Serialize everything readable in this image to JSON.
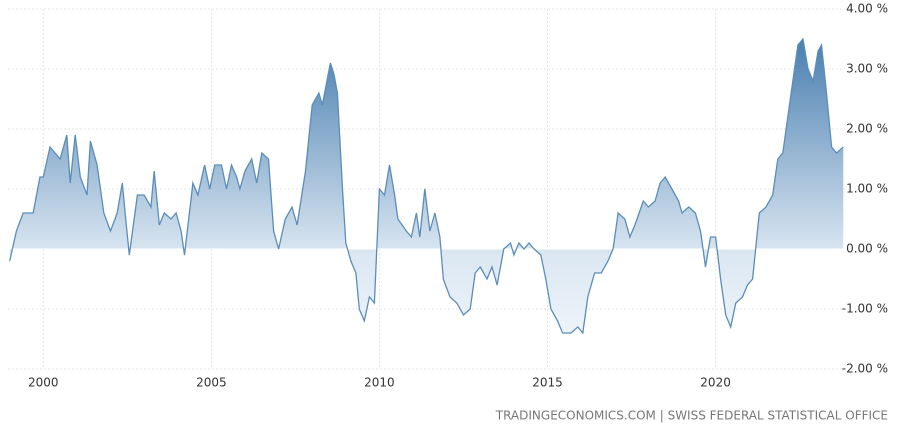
{
  "chart_data": {
    "type": "area",
    "source": "TRADINGECONOMICS.COM | SWISS FEDERAL STATISTICAL OFFICE",
    "xlim": [
      1998.95,
      2023.85
    ],
    "xticks": [
      2000,
      2005,
      2010,
      2015,
      2020
    ],
    "ylim": [
      -2,
      4
    ],
    "yticks": [
      {
        "value": -2,
        "label": "-2.00 %"
      },
      {
        "value": -1,
        "label": "-1.00 %"
      },
      {
        "value": 0,
        "label": "0.00 %"
      },
      {
        "value": 1,
        "label": "1.00 %"
      },
      {
        "value": 2,
        "label": "2.00 %"
      },
      {
        "value": 3,
        "label": "3.00 %"
      },
      {
        "value": 4,
        "label": "4.00 %"
      }
    ],
    "grid": true,
    "color": "#5b8db8",
    "x": [
      1999.0,
      1999.2,
      1999.4,
      1999.7,
      1999.9,
      2000.0,
      2000.2,
      2000.35,
      2000.5,
      2000.7,
      2000.8,
      2000.95,
      2001.1,
      2001.3,
      2001.4,
      2001.6,
      2001.8,
      2002.0,
      2002.2,
      2002.35,
      2002.45,
      2002.56,
      2002.8,
      2003.0,
      2003.2,
      2003.3,
      2003.45,
      2003.6,
      2003.8,
      2003.95,
      2004.1,
      2004.2,
      2004.45,
      2004.6,
      2004.8,
      2004.95,
      2005.1,
      2005.3,
      2005.45,
      2005.6,
      2005.75,
      2005.85,
      2006.0,
      2006.2,
      2006.35,
      2006.5,
      2006.7,
      2006.85,
      2007.0,
      2007.2,
      2007.4,
      2007.55,
      2007.8,
      2008.0,
      2008.2,
      2008.3,
      2008.54,
      2008.65,
      2008.75,
      2008.9,
      2009.0,
      2009.15,
      2009.3,
      2009.4,
      2009.55,
      2009.7,
      2009.85,
      2010.0,
      2010.15,
      2010.3,
      2010.45,
      2010.55,
      2010.8,
      2010.95,
      2011.1,
      2011.2,
      2011.35,
      2011.5,
      2011.65,
      2011.8,
      2011.9,
      2012.1,
      2012.3,
      2012.5,
      2012.7,
      2012.85,
      2013.0,
      2013.2,
      2013.35,
      2013.5,
      2013.7,
      2013.9,
      2014.0,
      2014.15,
      2014.3,
      2014.45,
      2014.6,
      2014.8,
      2014.95,
      2015.1,
      2015.3,
      2015.45,
      2015.7,
      2015.9,
      2016.05,
      2016.2,
      2016.4,
      2016.6,
      2016.8,
      2016.95,
      2017.1,
      2017.3,
      2017.45,
      2017.6,
      2017.85,
      2018.0,
      2018.2,
      2018.35,
      2018.5,
      2018.7,
      2018.9,
      2019.0,
      2019.2,
      2019.4,
      2019.55,
      2019.7,
      2019.85,
      2020.0,
      2020.15,
      2020.3,
      2020.45,
      2020.6,
      2020.8,
      2020.95,
      2021.1,
      2021.3,
      2021.5,
      2021.7,
      2021.85,
      2022.0,
      2022.2,
      2022.45,
      2022.6,
      2022.75,
      2022.9,
      2023.05,
      2023.15,
      2023.3,
      2023.45,
      2023.6,
      2023.8
    ],
    "values": [
      -0.2,
      0.3,
      0.6,
      0.6,
      1.2,
      1.2,
      1.7,
      1.6,
      1.5,
      1.9,
      1.1,
      1.9,
      1.2,
      0.9,
      1.8,
      1.4,
      0.6,
      0.3,
      0.6,
      1.1,
      0.5,
      -0.1,
      0.9,
      0.9,
      0.7,
      1.3,
      0.4,
      0.6,
      0.5,
      0.6,
      0.3,
      -0.1,
      1.1,
      0.9,
      1.4,
      1.0,
      1.4,
      1.4,
      1.0,
      1.4,
      1.2,
      1.0,
      1.3,
      1.5,
      1.1,
      1.6,
      1.5,
      0.3,
      0.0,
      0.5,
      0.7,
      0.4,
      1.3,
      2.4,
      2.6,
      2.4,
      3.1,
      2.9,
      2.6,
      1.0,
      0.1,
      -0.2,
      -0.4,
      -1.0,
      -1.2,
      -0.8,
      -0.9,
      1.0,
      0.9,
      1.4,
      0.9,
      0.5,
      0.3,
      0.2,
      0.6,
      0.2,
      1.0,
      0.3,
      0.6,
      0.2,
      -0.5,
      -0.8,
      -0.9,
      -1.1,
      -1.0,
      -0.4,
      -0.3,
      -0.5,
      -0.3,
      -0.6,
      0.0,
      0.1,
      -0.1,
      0.1,
      0.0,
      0.1,
      0.0,
      -0.1,
      -0.5,
      -1.0,
      -1.2,
      -1.4,
      -1.4,
      -1.3,
      -1.4,
      -0.8,
      -0.4,
      -0.4,
      -0.2,
      0.0,
      0.6,
      0.5,
      0.2,
      0.4,
      0.8,
      0.7,
      0.8,
      1.1,
      1.2,
      1.0,
      0.8,
      0.6,
      0.7,
      0.6,
      0.3,
      -0.3,
      0.2,
      0.2,
      -0.5,
      -1.1,
      -1.3,
      -0.9,
      -0.8,
      -0.6,
      -0.5,
      0.6,
      0.7,
      0.9,
      1.5,
      1.6,
      2.4,
      3.4,
      3.5,
      3.0,
      2.8,
      3.3,
      3.4,
      2.6,
      1.7,
      1.6,
      1.7
    ]
  }
}
